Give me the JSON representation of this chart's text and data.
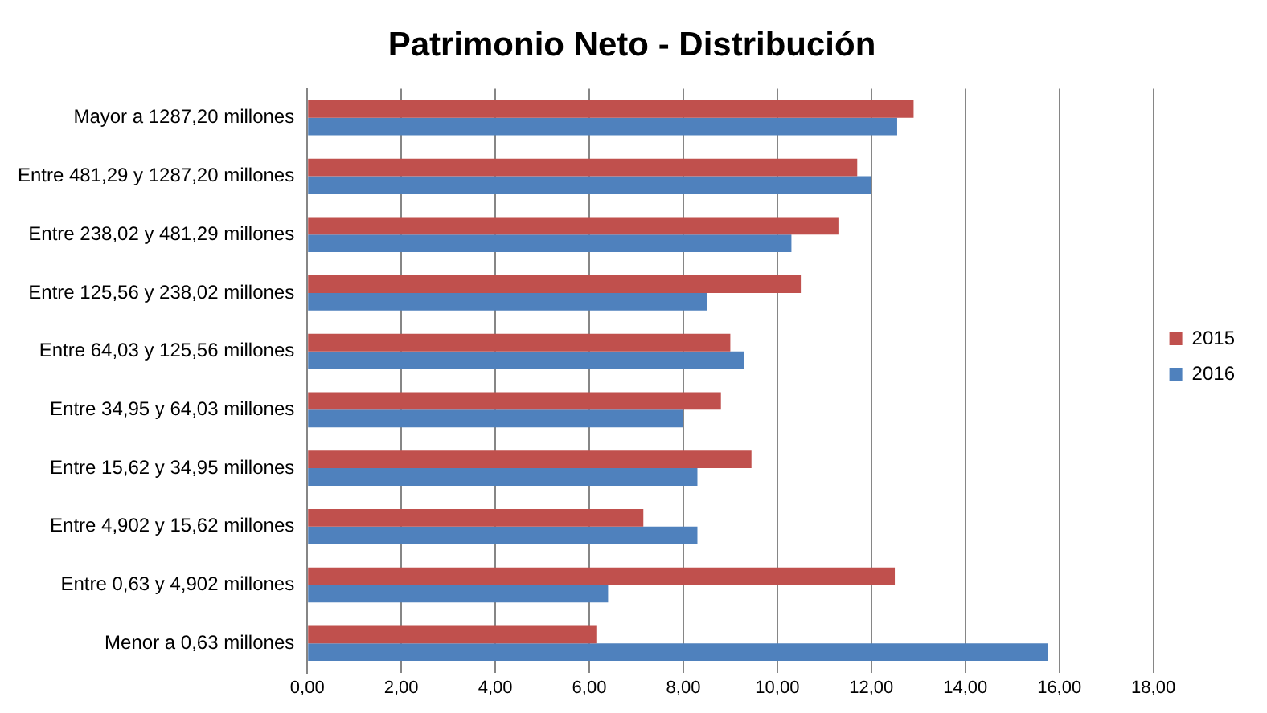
{
  "chart_data": {
    "type": "bar",
    "orientation": "horizontal",
    "title": "Patrimonio Neto - Distribución",
    "categories": [
      "Mayor a 1287,20 millones",
      "Entre 481,29 y 1287,20 millones",
      "Entre 238,02 y 481,29 millones",
      "Entre 125,56 y 238,02 millones",
      "Entre 64,03 y 125,56 millones",
      "Entre 34,95 y 64,03 millones",
      "Entre 15,62 y 34,95 millones",
      "Entre 4,902 y 15,62 millones",
      "Entre 0,63 y 4,902 millones",
      "Menor a 0,63 millones"
    ],
    "series": [
      {
        "name": "2015",
        "color": "#c0504d",
        "values": [
          12.9,
          11.7,
          11.3,
          10.5,
          9.0,
          8.8,
          9.45,
          7.15,
          12.5,
          6.15
        ]
      },
      {
        "name": "2016",
        "color": "#4f81bd",
        "values": [
          12.55,
          12.0,
          10.3,
          8.5,
          9.3,
          8.0,
          8.3,
          8.3,
          6.4,
          15.75
        ]
      }
    ],
    "xlim": [
      0,
      18
    ],
    "xticks": [
      {
        "value": 0,
        "label": "0,00"
      },
      {
        "value": 2,
        "label": "2,00"
      },
      {
        "value": 4,
        "label": "4,00"
      },
      {
        "value": 6,
        "label": "6,00"
      },
      {
        "value": 8,
        "label": "8,00"
      },
      {
        "value": 10,
        "label": "10,00"
      },
      {
        "value": 12,
        "label": "12,00"
      },
      {
        "value": 14,
        "label": "14,00"
      },
      {
        "value": 16,
        "label": "16,00"
      },
      {
        "value": 18,
        "label": "18,00"
      }
    ],
    "grid": "x",
    "legend": "right"
  }
}
